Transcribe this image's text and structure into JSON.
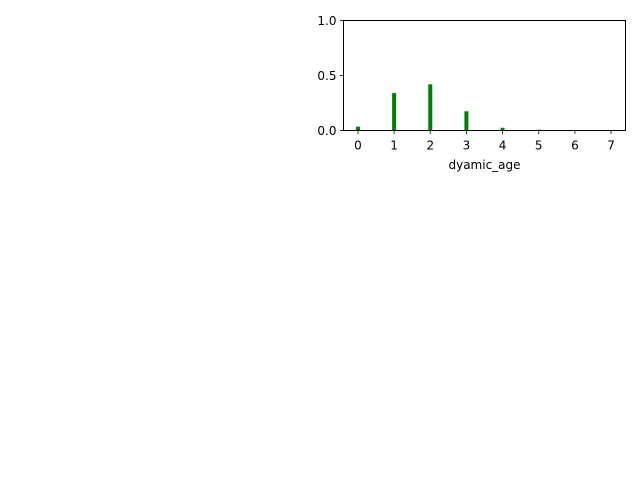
{
  "chart_data": {
    "type": "bar",
    "title": "",
    "xlabel": "dyamic_age",
    "ylabel": "",
    "categories": [
      0,
      1,
      2,
      3,
      4,
      5,
      6,
      7
    ],
    "values": [
      0.035,
      0.34,
      0.42,
      0.175,
      0.025,
      0.008,
      0.002,
      0.0
    ],
    "xlim": [
      -0.4,
      7.4
    ],
    "ylim": [
      0.0,
      1.0
    ],
    "x_ticks": [
      "0",
      "1",
      "2",
      "3",
      "4",
      "5",
      "6",
      "7"
    ],
    "y_ticks": [
      "0.0",
      "0.5",
      "1.0"
    ],
    "bar_color": "#008000",
    "grid": false,
    "legend": "none"
  }
}
